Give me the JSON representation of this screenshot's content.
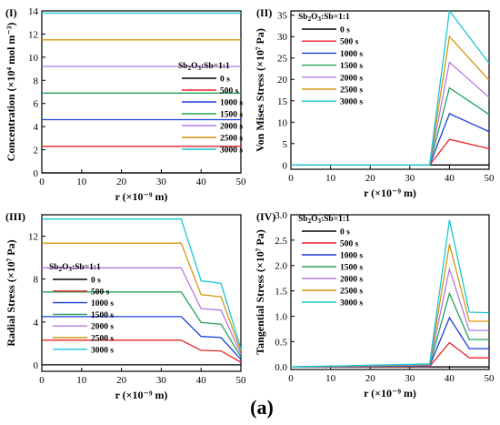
{
  "figure_caption": "(a)",
  "legend_title": "Sb2O3:Sb=1:1",
  "legend_labels": [
    "0 s",
    "500 s",
    "1000 s",
    "1500 s",
    "2000 s",
    "2500 s",
    "3000 s"
  ],
  "series_colors": [
    "#000000",
    "#e8242a",
    "#1a3fd6",
    "#24a358",
    "#b57ae0",
    "#d4960f",
    "#19c6d4"
  ],
  "chart_data": [
    {
      "panel_label": "(I)",
      "type": "line",
      "xlabel": "r (×10⁻⁹ m)",
      "ylabel": "Concentration (×10⁴ mol m⁻³)",
      "xlim": [
        0,
        50
      ],
      "ylim": [
        0,
        14
      ],
      "xticks": [
        0,
        10,
        20,
        30,
        40,
        50
      ],
      "yticks": [
        0,
        2,
        4,
        6,
        8,
        10,
        12,
        14
      ],
      "legend_position": "center-right",
      "x": [
        0,
        50
      ],
      "series": [
        {
          "name": "0 s",
          "values": [
            0,
            0
          ]
        },
        {
          "name": "500 s",
          "values": [
            2.3,
            2.3
          ]
        },
        {
          "name": "1000 s",
          "values": [
            4.6,
            4.6
          ]
        },
        {
          "name": "1500 s",
          "values": [
            6.9,
            6.9
          ]
        },
        {
          "name": "2000 s",
          "values": [
            9.2,
            9.2
          ]
        },
        {
          "name": "2500 s",
          "values": [
            11.5,
            11.5
          ]
        },
        {
          "name": "3000 s",
          "values": [
            13.8,
            13.8
          ]
        }
      ]
    },
    {
      "panel_label": "(II)",
      "type": "line",
      "xlabel": "r (×10⁻⁹ m)",
      "ylabel": "Von Mises Stress (×10⁷ Pa)",
      "xlim": [
        0,
        50
      ],
      "ylim": [
        -1,
        36
      ],
      "xticks": [
        0,
        10,
        20,
        30,
        40,
        50
      ],
      "yticks": [
        0,
        5,
        10,
        15,
        20,
        25,
        30,
        35
      ],
      "legend_position": "top-left",
      "x": [
        0,
        35,
        40,
        50
      ],
      "series": [
        {
          "name": "0 s",
          "values": [
            0,
            0,
            0,
            0
          ]
        },
        {
          "name": "500 s",
          "values": [
            0,
            0,
            6,
            3.8
          ]
        },
        {
          "name": "1000 s",
          "values": [
            0,
            0,
            12,
            7.8
          ]
        },
        {
          "name": "1500 s",
          "values": [
            0,
            0,
            18,
            11.8
          ]
        },
        {
          "name": "2000 s",
          "values": [
            0,
            0,
            24,
            15.8
          ]
        },
        {
          "name": "2500 s",
          "values": [
            0,
            0,
            30,
            19.8
          ]
        },
        {
          "name": "3000 s",
          "values": [
            0,
            0,
            36,
            23.8
          ]
        }
      ]
    },
    {
      "panel_label": "(III)",
      "type": "line",
      "xlabel": "r (×10⁻⁹ m)",
      "ylabel": "Radial Stress (×10⁷ Pa)",
      "xlim": [
        0,
        50
      ],
      "ylim": [
        -0.6,
        14
      ],
      "xticks": [
        0,
        10,
        20,
        30,
        40,
        50
      ],
      "yticks": [
        0,
        4,
        8,
        12
      ],
      "legend_position": "center-left",
      "x": [
        0,
        35,
        40,
        45,
        50
      ],
      "series": [
        {
          "name": "0 s",
          "values": [
            0,
            0,
            0,
            0,
            0
          ]
        },
        {
          "name": "500 s",
          "values": [
            2.3,
            2.3,
            1.35,
            1.3,
            0.25
          ]
        },
        {
          "name": "1000 s",
          "values": [
            4.5,
            4.5,
            2.65,
            2.55,
            0.5
          ]
        },
        {
          "name": "1500 s",
          "values": [
            6.8,
            6.8,
            3.95,
            3.8,
            0.75
          ]
        },
        {
          "name": "2000 s",
          "values": [
            9.05,
            9.05,
            5.25,
            5.1,
            1.0
          ]
        },
        {
          "name": "2500 s",
          "values": [
            11.35,
            11.35,
            6.55,
            6.35,
            1.25
          ]
        },
        {
          "name": "3000 s",
          "values": [
            13.6,
            13.6,
            7.85,
            7.6,
            1.5
          ]
        }
      ]
    },
    {
      "panel_label": "(IV)",
      "type": "line",
      "xlabel": "r (×10⁻⁹ m)",
      "ylabel": "Tangential Stress (×10⁷ Pa)",
      "xlim": [
        0,
        50
      ],
      "ylim": [
        -0.05,
        3.0
      ],
      "xticks": [
        0,
        10,
        20,
        30,
        40,
        50
      ],
      "yticks": [
        0.0,
        0.5,
        1.0,
        1.5,
        2.0,
        2.5,
        3.0
      ],
      "legend_position": "top-left",
      "x": [
        0,
        35,
        40,
        45,
        50
      ],
      "series": [
        {
          "name": "0 s",
          "values": [
            0,
            0,
            0,
            0,
            0
          ]
        },
        {
          "name": "500 s",
          "values": [
            0,
            0.01,
            0.48,
            0.18,
            0.18
          ]
        },
        {
          "name": "1000 s",
          "values": [
            0,
            0.02,
            0.97,
            0.36,
            0.36
          ]
        },
        {
          "name": "1500 s",
          "values": [
            0,
            0.03,
            1.45,
            0.54,
            0.54
          ]
        },
        {
          "name": "2000 s",
          "values": [
            0,
            0.04,
            1.93,
            0.72,
            0.72
          ]
        },
        {
          "name": "2500 s",
          "values": [
            0,
            0.05,
            2.42,
            0.9,
            0.9
          ]
        },
        {
          "name": "3000 s",
          "values": [
            0,
            0.06,
            2.9,
            1.08,
            1.07
          ]
        }
      ]
    }
  ]
}
